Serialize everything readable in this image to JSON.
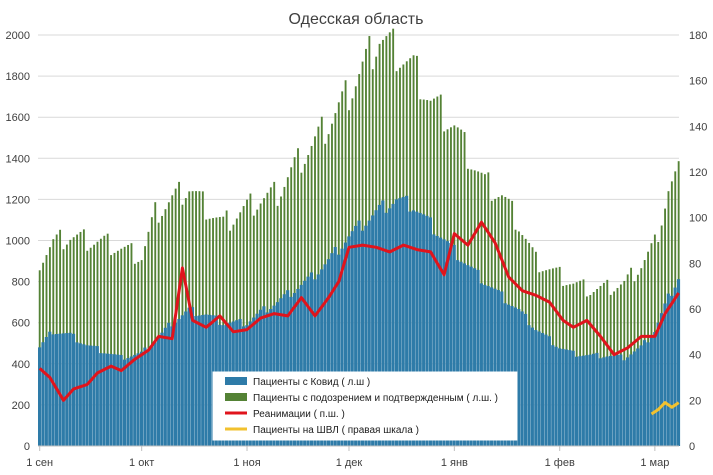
{
  "chart_data": {
    "type": "bar",
    "title": "Одесская область",
    "xlabel": "",
    "ylabel": "",
    "ylabel_right": "",
    "ylim": [
      0,
      2000
    ],
    "ylim_right": [
      0,
      180
    ],
    "yticks": [
      "0",
      "200",
      "400",
      "600",
      "800",
      "1000",
      "1200",
      "1400",
      "1600",
      "1800",
      "2000"
    ],
    "yticks_right": [
      "0",
      "20",
      "40",
      "60",
      "80",
      "100",
      "120",
      "140",
      "160",
      "180"
    ],
    "x_range": [
      "2020-09-01",
      "2021-03-08"
    ],
    "xticks": [
      {
        "date": "2020-09-01",
        "label": "1 сен"
      },
      {
        "date": "2020-10-01",
        "label": "1 окт"
      },
      {
        "date": "2020-11-01",
        "label": "1 ноя"
      },
      {
        "date": "2020-12-01",
        "label": "1 дек"
      },
      {
        "date": "2021-01-01",
        "label": "1 янв"
      },
      {
        "date": "2021-02-01",
        "label": "1 фев"
      },
      {
        "date": "2021-03-01",
        "label": "1 мар"
      }
    ],
    "legend_position": "bottom-center, inside plot",
    "grid": true,
    "colors": {
      "covid": "#2e7ba8",
      "suspected": "#548235",
      "icu": "#e0141c",
      "ventilation": "#f2c12e"
    },
    "series": [
      {
        "name": "Пациенты с Ковид ( л.ш )",
        "kind": "bar",
        "axis": "left",
        "points": [
          [
            "2020-09-01",
            480
          ],
          [
            "2020-09-05",
            560
          ],
          [
            "2020-09-10",
            540
          ],
          [
            "2020-09-15",
            490
          ],
          [
            "2020-09-20",
            460
          ],
          [
            "2020-09-25",
            430
          ],
          [
            "2020-10-01",
            450
          ],
          [
            "2020-10-05",
            510
          ],
          [
            "2020-10-10",
            600
          ],
          [
            "2020-10-15",
            660
          ],
          [
            "2020-10-20",
            640
          ],
          [
            "2020-10-25",
            600
          ],
          [
            "2020-11-01",
            600
          ],
          [
            "2020-11-05",
            650
          ],
          [
            "2020-11-10",
            700
          ],
          [
            "2020-11-15",
            760
          ],
          [
            "2020-11-20",
            820
          ],
          [
            "2020-11-25",
            900
          ],
          [
            "2020-12-01",
            1020
          ],
          [
            "2020-12-05",
            1080
          ],
          [
            "2020-12-10",
            1150
          ],
          [
            "2020-12-15",
            1200
          ],
          [
            "2020-12-20",
            1170
          ],
          [
            "2020-12-25",
            1080
          ],
          [
            "2021-01-01",
            950
          ],
          [
            "2021-01-05",
            880
          ],
          [
            "2021-01-10",
            800
          ],
          [
            "2021-01-15",
            730
          ],
          [
            "2021-01-20",
            660
          ],
          [
            "2021-01-25",
            570
          ],
          [
            "2021-02-01",
            480
          ],
          [
            "2021-02-05",
            450
          ],
          [
            "2021-02-10",
            440
          ],
          [
            "2021-02-15",
            440
          ],
          [
            "2021-02-20",
            430
          ],
          [
            "2021-02-25",
            480
          ],
          [
            "2021-03-01",
            560
          ],
          [
            "2021-03-05",
            720
          ],
          [
            "2021-03-08",
            820
          ]
        ]
      },
      {
        "name": "Пациенты с подозрением и подтвержденным ( л.ш. )",
        "kind": "bar",
        "axis": "left",
        "points": [
          [
            "2020-09-01",
            900
          ],
          [
            "2020-09-05",
            990
          ],
          [
            "2020-09-10",
            1020
          ],
          [
            "2020-09-15",
            1000
          ],
          [
            "2020-09-20",
            990
          ],
          [
            "2020-09-25",
            960
          ],
          [
            "2020-10-01",
            920
          ],
          [
            "2020-10-05",
            1130
          ],
          [
            "2020-10-10",
            1200
          ],
          [
            "2020-10-15",
            1260
          ],
          [
            "2020-10-20",
            1160
          ],
          [
            "2020-10-25",
            1080
          ],
          [
            "2020-11-01",
            1160
          ],
          [
            "2020-11-05",
            1200
          ],
          [
            "2020-11-10",
            1230
          ],
          [
            "2020-11-15",
            1360
          ],
          [
            "2020-11-20",
            1460
          ],
          [
            "2020-11-25",
            1570
          ],
          [
            "2020-12-01",
            1720
          ],
          [
            "2020-12-05",
            1840
          ],
          [
            "2020-12-10",
            1990
          ],
          [
            "2020-12-15",
            1920
          ],
          [
            "2020-12-20",
            1840
          ],
          [
            "2020-12-25",
            1680
          ],
          [
            "2021-01-01",
            1560
          ],
          [
            "2021-01-05",
            1420
          ],
          [
            "2021-01-10",
            1280
          ],
          [
            "2021-01-15",
            1220
          ],
          [
            "2021-01-20",
            1080
          ],
          [
            "2021-01-25",
            900
          ],
          [
            "2021-02-01",
            830
          ],
          [
            "2021-02-05",
            790
          ],
          [
            "2021-02-10",
            760
          ],
          [
            "2021-02-15",
            770
          ],
          [
            "2021-02-20",
            790
          ],
          [
            "2021-02-25",
            880
          ],
          [
            "2021-03-01",
            980
          ],
          [
            "2021-03-05",
            1240
          ],
          [
            "2021-03-08",
            1320
          ]
        ]
      },
      {
        "name": "Реанимации ( п.ш. )",
        "kind": "line",
        "axis": "right",
        "points": [
          [
            "2020-09-01",
            34
          ],
          [
            "2020-09-04",
            30
          ],
          [
            "2020-09-08",
            20
          ],
          [
            "2020-09-11",
            25
          ],
          [
            "2020-09-15",
            27
          ],
          [
            "2020-09-18",
            32
          ],
          [
            "2020-09-22",
            35
          ],
          [
            "2020-09-25",
            33
          ],
          [
            "2020-09-29",
            38
          ],
          [
            "2020-10-03",
            42
          ],
          [
            "2020-10-06",
            48
          ],
          [
            "2020-10-10",
            47
          ],
          [
            "2020-10-13",
            78
          ],
          [
            "2020-10-16",
            55
          ],
          [
            "2020-10-20",
            52
          ],
          [
            "2020-10-24",
            57
          ],
          [
            "2020-10-28",
            50
          ],
          [
            "2020-11-01",
            51
          ],
          [
            "2020-11-05",
            56
          ],
          [
            "2020-11-09",
            58
          ],
          [
            "2020-11-13",
            57
          ],
          [
            "2020-11-17",
            65
          ],
          [
            "2020-11-21",
            57
          ],
          [
            "2020-11-25",
            65
          ],
          [
            "2020-11-28",
            72
          ],
          [
            "2020-12-01",
            87
          ],
          [
            "2020-12-05",
            88
          ],
          [
            "2020-12-09",
            87
          ],
          [
            "2020-12-13",
            85
          ],
          [
            "2020-12-17",
            88
          ],
          [
            "2020-12-21",
            86
          ],
          [
            "2020-12-25",
            85
          ],
          [
            "2020-12-29",
            75
          ],
          [
            "2021-01-01",
            93
          ],
          [
            "2021-01-05",
            88
          ],
          [
            "2021-01-09",
            98
          ],
          [
            "2021-01-13",
            89
          ],
          [
            "2021-01-17",
            74
          ],
          [
            "2021-01-21",
            68
          ],
          [
            "2021-01-25",
            66
          ],
          [
            "2021-01-29",
            63
          ],
          [
            "2021-02-02",
            55
          ],
          [
            "2021-02-05",
            52
          ],
          [
            "2021-02-09",
            55
          ],
          [
            "2021-02-13",
            48
          ],
          [
            "2021-02-17",
            40
          ],
          [
            "2021-02-21",
            43
          ],
          [
            "2021-02-25",
            48
          ],
          [
            "2021-03-01",
            48
          ],
          [
            "2021-03-04",
            58
          ],
          [
            "2021-03-08",
            67
          ]
        ]
      },
      {
        "name": "Пациенты на ШВЛ ( правая шкала )",
        "kind": "line",
        "axis": "right",
        "points": [
          [
            "2021-02-28",
            14
          ],
          [
            "2021-03-02",
            16
          ],
          [
            "2021-03-04",
            19
          ],
          [
            "2021-03-06",
            17
          ],
          [
            "2021-03-08",
            19
          ]
        ]
      }
    ]
  }
}
